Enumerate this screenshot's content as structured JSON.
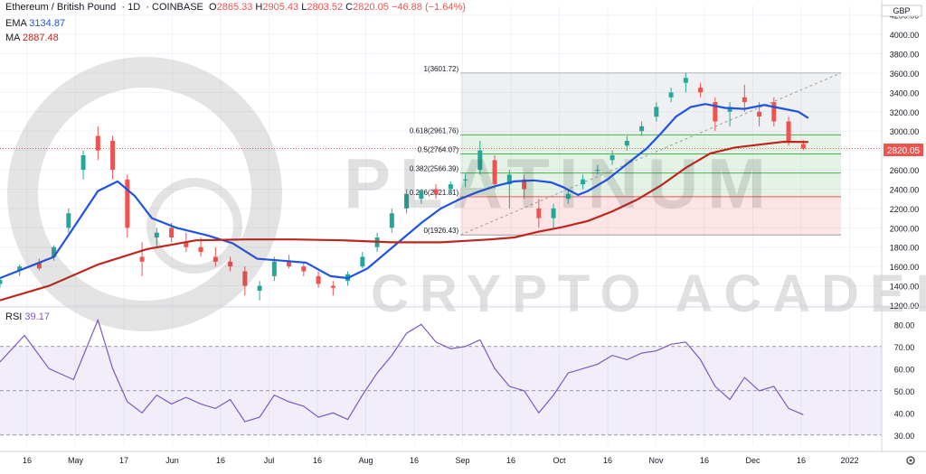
{
  "header": {
    "symbol": "Ethereum / British Pound",
    "interval": "1D",
    "exchange": "COINBASE",
    "o_label": "O",
    "o": "2865.33",
    "h_label": "H",
    "h": "2905.43",
    "l_label": "L",
    "l": "2803.52",
    "c_label": "C",
    "c": "2820.05",
    "change": "−46.88 (−1.64%)"
  },
  "ema": {
    "label": "EMA",
    "value": "3134.87",
    "color": "#1e53e5"
  },
  "ma": {
    "label": "MA",
    "value": "2887.48",
    "color": "#c0251d"
  },
  "rsi": {
    "label": "RSI",
    "value": "39.17",
    "color": "#7e57c2"
  },
  "currency": "GBP",
  "price_tag": "2820.05",
  "watermark": {
    "line1": "PLATINUM",
    "line2": "CRYPTO ACADEMY"
  },
  "settings_icon": "gear-icon",
  "chart_data": {
    "type": "candlestick",
    "ylim": [
      1200,
      4300
    ],
    "yticks": [
      1200,
      1400,
      1600,
      1800,
      2000,
      2200,
      2400,
      2600,
      2800,
      3000,
      3200,
      3400,
      3600,
      3800,
      4000,
      4200
    ],
    "xticks": [
      "16",
      "May",
      "17",
      "Jun",
      "16",
      "Jul",
      "16",
      "Aug",
      "16",
      "Sep",
      "16",
      "Oct",
      "16",
      "Nov",
      "16",
      "Dec",
      "16",
      "2022"
    ],
    "series": [
      {
        "name": "EMA",
        "values": [
          [
            0,
            1480
          ],
          [
            12,
            1600
          ],
          [
            22,
            1700
          ],
          [
            30,
            2000
          ],
          [
            40,
            2380
          ],
          [
            48,
            2480
          ],
          [
            55,
            2330
          ],
          [
            62,
            2100
          ],
          [
            72,
            2000
          ],
          [
            85,
            1920
          ],
          [
            95,
            1840
          ],
          [
            105,
            1680
          ],
          [
            115,
            1660
          ],
          [
            125,
            1640
          ],
          [
            135,
            1500
          ],
          [
            142,
            1480
          ],
          [
            150,
            1580
          ],
          [
            158,
            1750
          ],
          [
            165,
            1900
          ],
          [
            172,
            2050
          ],
          [
            180,
            2200
          ],
          [
            188,
            2300
          ],
          [
            195,
            2370
          ],
          [
            202,
            2430
          ],
          [
            210,
            2480
          ],
          [
            218,
            2490
          ],
          [
            225,
            2470
          ],
          [
            230,
            2420
          ],
          [
            236,
            2340
          ],
          [
            240,
            2380
          ],
          [
            248,
            2500
          ],
          [
            256,
            2660
          ],
          [
            264,
            2820
          ],
          [
            270,
            2980
          ],
          [
            276,
            3150
          ],
          [
            282,
            3250
          ],
          [
            288,
            3280
          ],
          [
            296,
            3240
          ],
          [
            304,
            3230
          ],
          [
            312,
            3270
          ],
          [
            318,
            3240
          ],
          [
            326,
            3200
          ],
          [
            330,
            3134.87
          ]
        ]
      },
      {
        "name": "MA",
        "values": [
          [
            0,
            1250
          ],
          [
            20,
            1400
          ],
          [
            40,
            1620
          ],
          [
            60,
            1780
          ],
          [
            80,
            1870
          ],
          [
            100,
            1880
          ],
          [
            120,
            1880
          ],
          [
            140,
            1870
          ],
          [
            160,
            1850
          ],
          [
            180,
            1850
          ],
          [
            200,
            1880
          ],
          [
            210,
            1900
          ],
          [
            220,
            1960
          ],
          [
            230,
            2010
          ],
          [
            240,
            2070
          ],
          [
            250,
            2170
          ],
          [
            260,
            2290
          ],
          [
            270,
            2440
          ],
          [
            280,
            2620
          ],
          [
            290,
            2770
          ],
          [
            300,
            2830
          ],
          [
            310,
            2860
          ],
          [
            320,
            2890
          ],
          [
            330,
            2887.48
          ]
        ]
      }
    ],
    "candles": [
      [
        0,
        1420,
        1480,
        1380,
        1460
      ],
      [
        8,
        1560,
        1620,
        1500,
        1600
      ],
      [
        16,
        1640,
        1680,
        1560,
        1580
      ],
      [
        22,
        1700,
        1820,
        1660,
        1800
      ],
      [
        28,
        2000,
        2200,
        1950,
        2150
      ],
      [
        34,
        2600,
        2800,
        2500,
        2750
      ],
      [
        40,
        2950,
        3050,
        2700,
        2800
      ],
      [
        46,
        2900,
        2950,
        2500,
        2600
      ],
      [
        52,
        2500,
        2550,
        1900,
        2000
      ],
      [
        58,
        1700,
        1850,
        1500,
        1650
      ],
      [
        64,
        1900,
        2000,
        1800,
        1950
      ],
      [
        70,
        2000,
        2050,
        1850,
        1900
      ],
      [
        76,
        1850,
        1950,
        1750,
        1800
      ],
      [
        82,
        1800,
        1900,
        1700,
        1750
      ],
      [
        88,
        1700,
        1800,
        1600,
        1650
      ],
      [
        94,
        1650,
        1700,
        1550,
        1600
      ],
      [
        100,
        1550,
        1600,
        1300,
        1400
      ],
      [
        106,
        1350,
        1450,
        1250,
        1400
      ],
      [
        112,
        1500,
        1700,
        1450,
        1650
      ],
      [
        118,
        1650,
        1720,
        1580,
        1600
      ],
      [
        124,
        1600,
        1650,
        1500,
        1550
      ],
      [
        130,
        1500,
        1550,
        1380,
        1420
      ],
      [
        136,
        1400,
        1450,
        1300,
        1380
      ],
      [
        142,
        1450,
        1550,
        1400,
        1520
      ],
      [
        148,
        1600,
        1750,
        1580,
        1700
      ],
      [
        154,
        1800,
        1950,
        1750,
        1900
      ],
      [
        160,
        2000,
        2200,
        1950,
        2150
      ],
      [
        166,
        2200,
        2400,
        2150,
        2350
      ],
      [
        172,
        2300,
        2400,
        2250,
        2380
      ],
      [
        178,
        2400,
        2450,
        2300,
        2350
      ],
      [
        184,
        2400,
        2480,
        2350,
        2450
      ],
      [
        190,
        2500,
        2560,
        2420,
        2500
      ],
      [
        196,
        2600,
        2900,
        2550,
        2800
      ],
      [
        202,
        2700,
        2750,
        2400,
        2450
      ],
      [
        208,
        2450,
        2600,
        2200,
        2550
      ],
      [
        214,
        2500,
        2550,
        2300,
        2400
      ],
      [
        220,
        2200,
        2300,
        2000,
        2100
      ],
      [
        226,
        2100,
        2250,
        2000,
        2200
      ],
      [
        232,
        2300,
        2400,
        2250,
        2350
      ],
      [
        238,
        2450,
        2550,
        2400,
        2500
      ],
      [
        244,
        2600,
        2650,
        2550,
        2600
      ],
      [
        250,
        2700,
        2800,
        2650,
        2750
      ],
      [
        256,
        2850,
        2950,
        2800,
        2900
      ],
      [
        262,
        3000,
        3100,
        2950,
        3050
      ],
      [
        268,
        3150,
        3300,
        3100,
        3250
      ],
      [
        274,
        3350,
        3450,
        3300,
        3400
      ],
      [
        280,
        3500,
        3601.72,
        3400,
        3550
      ],
      [
        286,
        3450,
        3500,
        3350,
        3400
      ],
      [
        292,
        3300,
        3350,
        3000,
        3100
      ],
      [
        298,
        3200,
        3300,
        3050,
        3250
      ],
      [
        304,
        3350,
        3480,
        3200,
        3300
      ],
      [
        310,
        3200,
        3300,
        3050,
        3150
      ],
      [
        316,
        3300,
        3350,
        3050,
        3100
      ],
      [
        322,
        3100,
        3150,
        2850,
        2900
      ],
      [
        328,
        2865.33,
        2905.43,
        2803.52,
        2820.05
      ]
    ],
    "fibonacci": [
      {
        "label": "1(3601.72)",
        "value": 3601.72
      },
      {
        "label": "0.618(2961.76)",
        "value": 2961.76
      },
      {
        "label": "0.5(2764.07)",
        "value": 2764.07
      },
      {
        "label": "0.382(2566.39)",
        "value": 2566.39
      },
      {
        "label": "0.236(2321.81)",
        "value": 2321.81
      },
      {
        "label": "0(1926.43)",
        "value": 1926.43
      }
    ],
    "rsi": {
      "ylim": [
        25,
        85
      ],
      "yticks": [
        30,
        40,
        50,
        60,
        70,
        80
      ],
      "upper": 70,
      "lower": 30,
      "values": [
        [
          0,
          63
        ],
        [
          10,
          75
        ],
        [
          20,
          60
        ],
        [
          30,
          55
        ],
        [
          40,
          82
        ],
        [
          46,
          60
        ],
        [
          52,
          45
        ],
        [
          58,
          40
        ],
        [
          64,
          48
        ],
        [
          70,
          44
        ],
        [
          76,
          47
        ],
        [
          82,
          44
        ],
        [
          88,
          42
        ],
        [
          94,
          46
        ],
        [
          100,
          36
        ],
        [
          106,
          38
        ],
        [
          112,
          48
        ],
        [
          118,
          45
        ],
        [
          124,
          43
        ],
        [
          130,
          38
        ],
        [
          136,
          40
        ],
        [
          142,
          37
        ],
        [
          148,
          48
        ],
        [
          154,
          58
        ],
        [
          160,
          66
        ],
        [
          166,
          76
        ],
        [
          172,
          80
        ],
        [
          178,
          72
        ],
        [
          184,
          69
        ],
        [
          190,
          70
        ],
        [
          196,
          73
        ],
        [
          202,
          60
        ],
        [
          208,
          52
        ],
        [
          214,
          50
        ],
        [
          220,
          40
        ],
        [
          226,
          48
        ],
        [
          232,
          58
        ],
        [
          238,
          60
        ],
        [
          244,
          62
        ],
        [
          250,
          66
        ],
        [
          256,
          64
        ],
        [
          262,
          67
        ],
        [
          268,
          68
        ],
        [
          274,
          71
        ],
        [
          280,
          72
        ],
        [
          286,
          64
        ],
        [
          292,
          52
        ],
        [
          298,
          46
        ],
        [
          304,
          56
        ],
        [
          310,
          50
        ],
        [
          316,
          52
        ],
        [
          322,
          42
        ],
        [
          328,
          39.17
        ]
      ]
    }
  }
}
